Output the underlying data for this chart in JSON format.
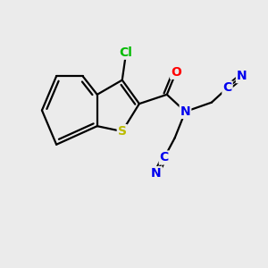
{
  "background_color": "#ebebeb",
  "bond_color": "#000000",
  "atom_colors": {
    "Cl": "#00bb00",
    "S": "#bbbb00",
    "O": "#ff0000",
    "N": "#0000ee",
    "C": "#0000ee"
  },
  "figsize": [
    3.0,
    3.0
  ],
  "dpi": 100,
  "xlim": [
    0,
    10
  ],
  "ylim": [
    0,
    10
  ]
}
